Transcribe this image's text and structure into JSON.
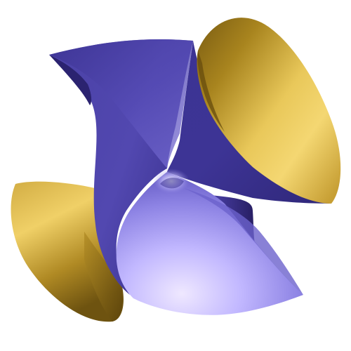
{
  "scene": {
    "kind": "algebraic surface render",
    "background": "#ffffff",
    "colors": {
      "violet_deep": "#2a1f6e",
      "violet_dark": "#3d3393",
      "violet_mid": "#5a50b8",
      "violet_light": "#9f96ee",
      "violet_pale": "#e4ddff",
      "gold_dark": "#6e5310",
      "gold_mid": "#b89028",
      "gold_light": "#edcc60",
      "gold_highlight": "#f6dd78"
    }
  }
}
